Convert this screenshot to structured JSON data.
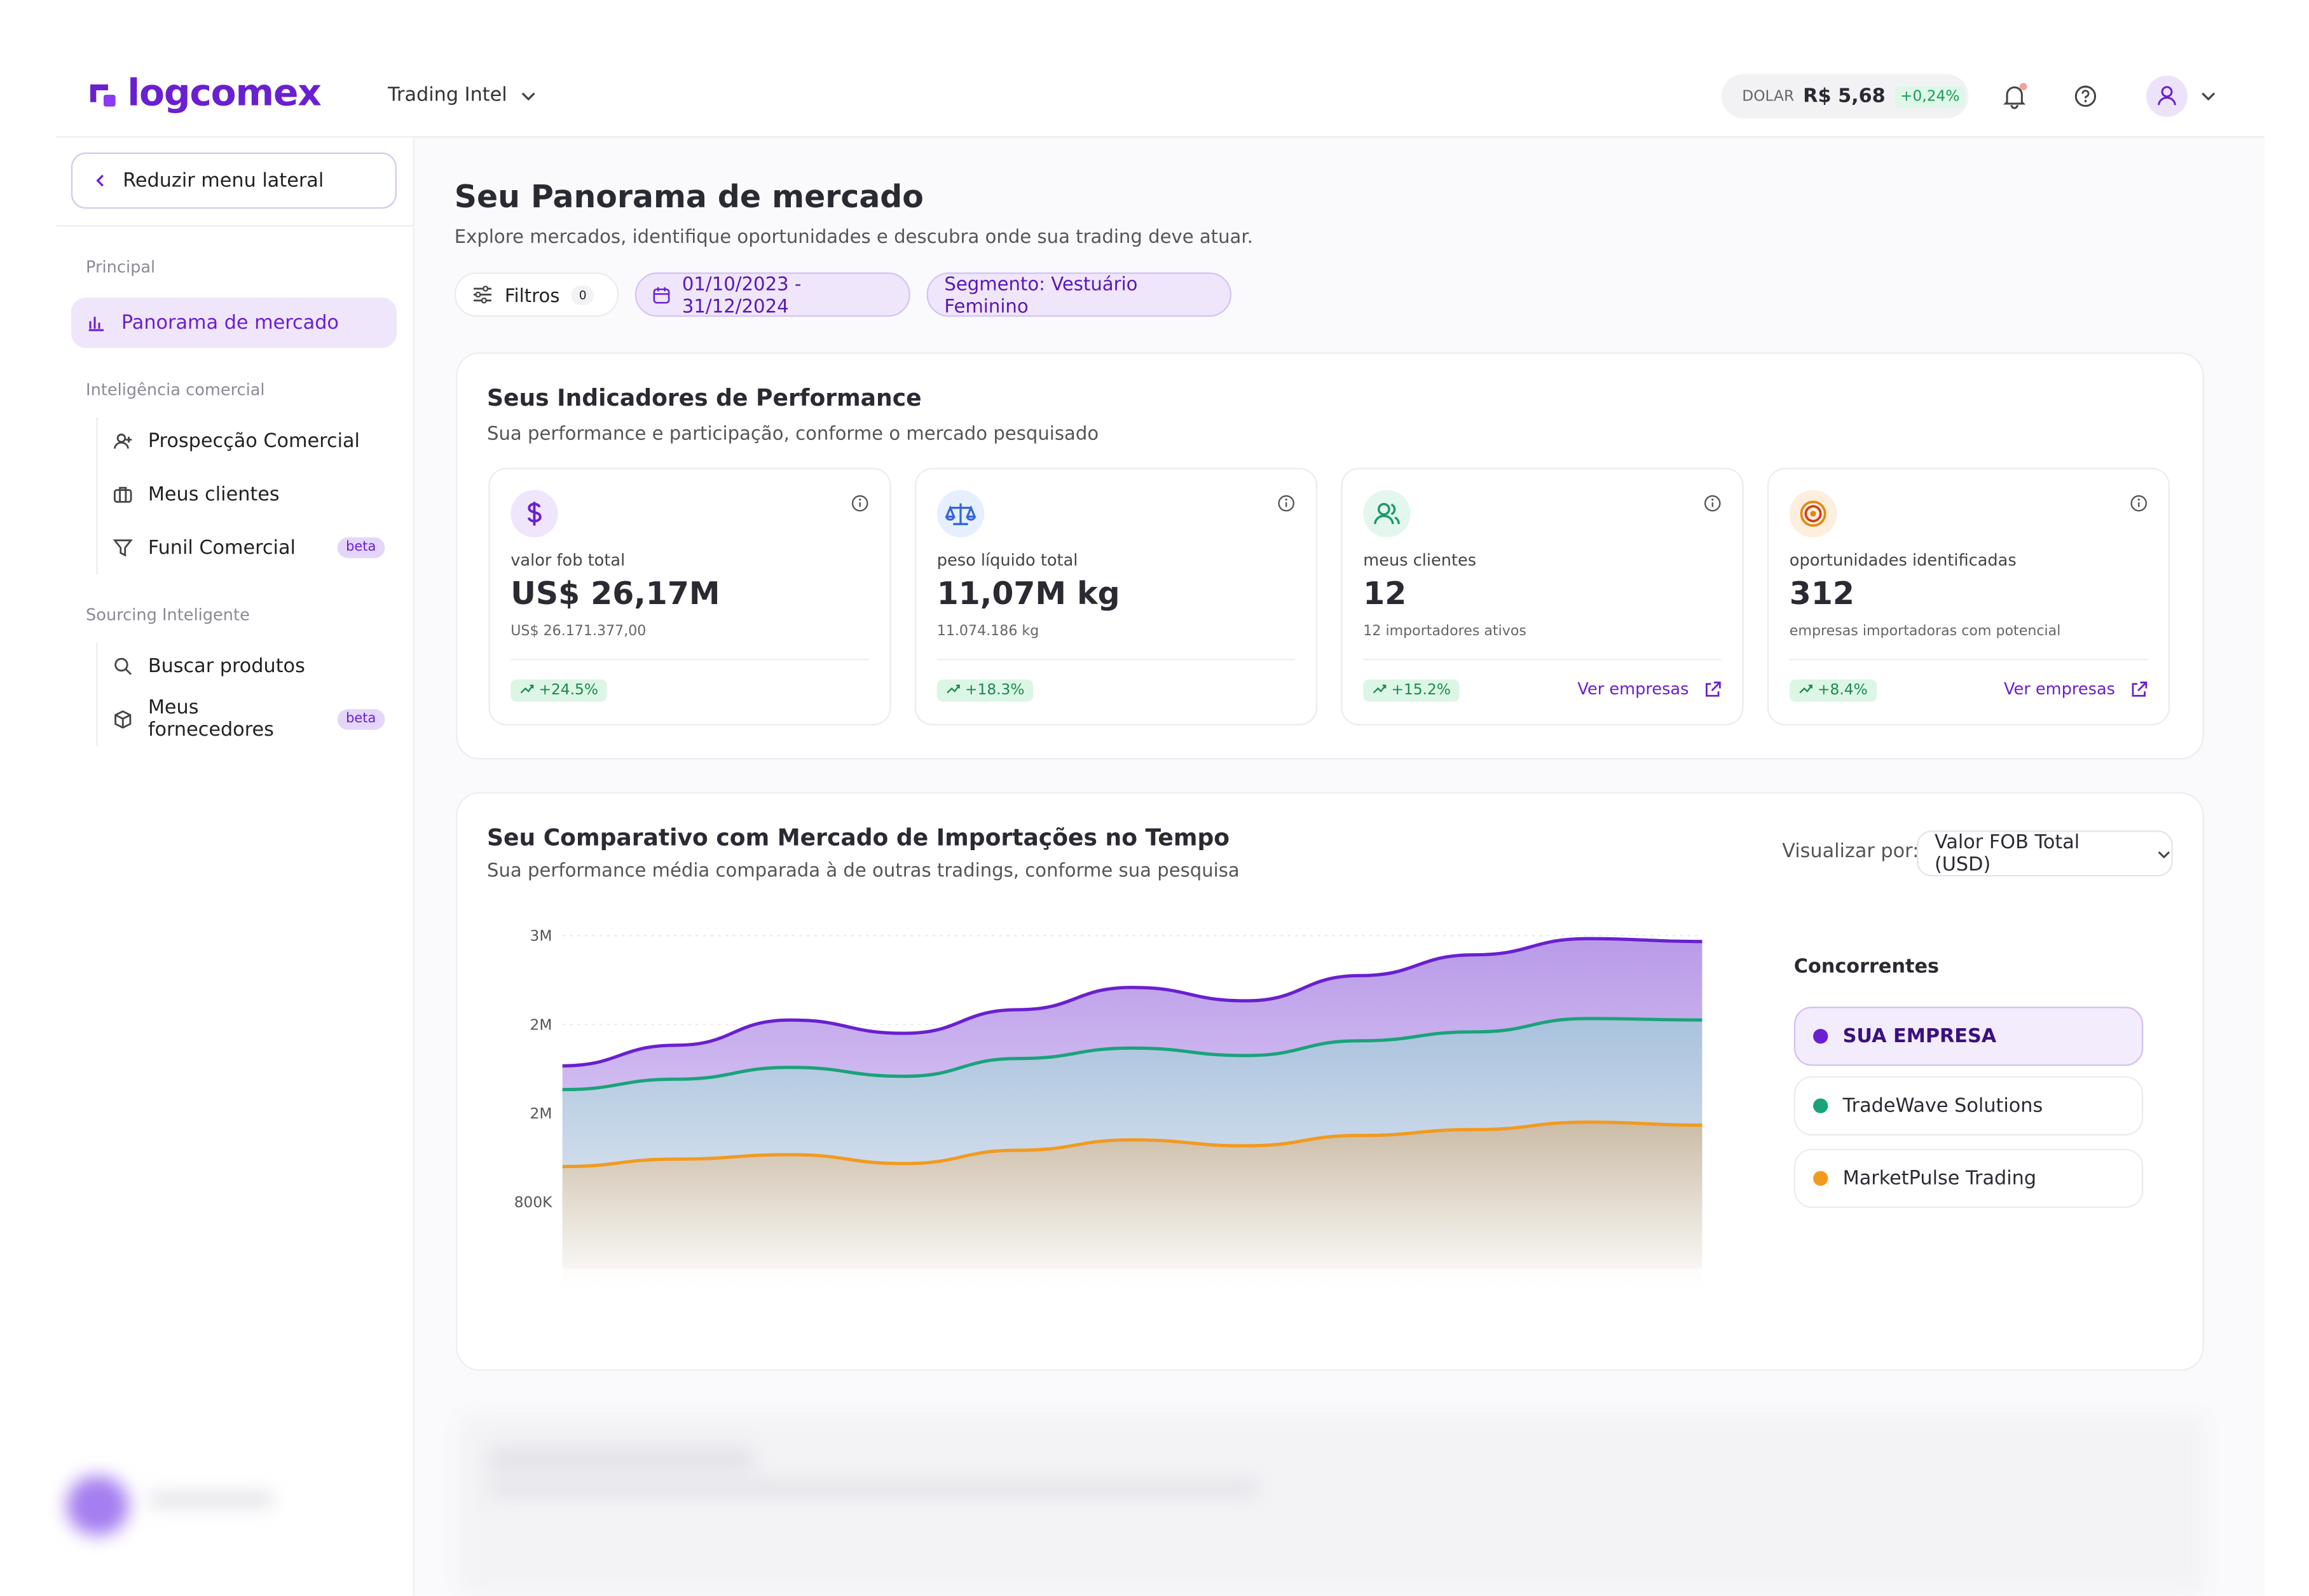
{
  "header": {
    "brand": "logcomex",
    "workspace": "Trading Intel",
    "currency_label": "DOLAR",
    "currency_value": "R$ 5,68",
    "currency_change": "+0,24%"
  },
  "sidebar": {
    "collapse": "Reduzir menu lateral",
    "sections": [
      {
        "title": "Principal",
        "items": [
          {
            "label": "Panorama de mercado"
          }
        ]
      },
      {
        "title": "Inteligência comercial",
        "items": [
          {
            "label": "Prospecção Comercial"
          },
          {
            "label": "Meus clientes"
          },
          {
            "label": "Funil Comercial",
            "badge": "beta"
          }
        ]
      },
      {
        "title": "Sourcing Inteligente",
        "items": [
          {
            "label": "Buscar produtos"
          },
          {
            "label": "Meus fornecedores",
            "badge": "beta"
          }
        ]
      }
    ]
  },
  "page": {
    "title": "Seu Panorama de mercado",
    "subtitle": "Explore mercados, identifique oportunidades e descubra onde sua trading deve atuar.",
    "filters": "Filtros",
    "filter_count": 0,
    "date_range": "01/10/2023 - 31/12/2024",
    "segment": "Segmento: Vestuário Feminino"
  },
  "kpis": {
    "title": "Seus Indicadores de Performance",
    "subtitle": "Sua performance e participação, conforme o mercado pesquisado",
    "cards": [
      {
        "label": "valor fob total",
        "value": "US$ 26,17M",
        "detail": "US$ 26.171.377,00",
        "change": "+24.5%"
      },
      {
        "label": "peso líquido total",
        "value": "11,07M kg",
        "detail": "11.074.186 kg",
        "change": "+18.3%"
      },
      {
        "label": "meus clientes",
        "value": "12",
        "detail": "12 importadores ativos",
        "change": "+15.2%",
        "link": "Ver empresas"
      },
      {
        "label": "oportunidades identificadas",
        "value": "312",
        "detail": "empresas importadoras com potencial",
        "change": "+8.4%",
        "link": "Ver empresas"
      }
    ]
  },
  "chart_data": {
    "type": "area",
    "title": "Seu Comparativo com Mercado de Importações no Tempo",
    "subtitle": "Sua performance média comparada à de outras tradings, conforme sua pesquisa",
    "view_label": "Visualizar por:",
    "view_option": "Valor FOB Total (USD)",
    "legend_title": "Concorrentes",
    "categories": [
      null,
      null,
      null,
      null,
      null,
      null,
      null,
      null,
      null,
      null,
      null
    ],
    "series": [
      {
        "name": "SUA EMPRESA",
        "color": "#6a1fd0",
        "values": [
          2027000,
          2213000,
          2440000,
          2320000,
          2533000,
          2733000,
          2613000,
          2840000,
          3027000,
          3173000,
          3147000
        ]
      },
      {
        "name": "TradeWave Solutions",
        "color": "#1aa37a",
        "values": [
          1813000,
          1907000,
          2013000,
          1933000,
          2093000,
          2187000,
          2120000,
          2253000,
          2333000,
          2453000,
          2440000
        ]
      },
      {
        "name": "MarketPulse Trading",
        "color": "#f29a1f",
        "values": [
          1120000,
          1187000,
          1227000,
          1147000,
          1267000,
          1360000,
          1307000,
          1400000,
          1453000,
          1520000,
          1493000
        ]
      }
    ],
    "ylim": [
      0,
      3200000
    ],
    "yticks": [
      {
        "value": 800000,
        "label": "800K"
      },
      {
        "value": 1600000,
        "label": "2M"
      },
      {
        "value": 2400000,
        "label": "2M"
      },
      {
        "value": 3200000,
        "label": "3M"
      }
    ],
    "grid": true
  }
}
